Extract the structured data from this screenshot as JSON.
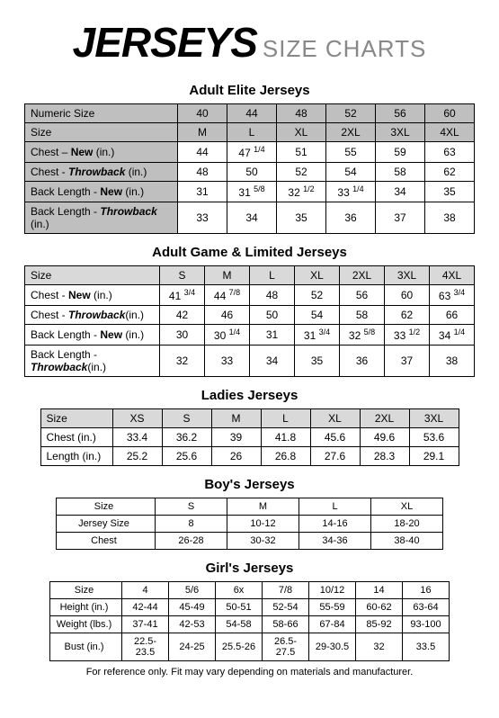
{
  "header": {
    "brand": "JERSEYS",
    "sub": "SIZE CHARTS"
  },
  "tables": {
    "adult_elite": {
      "title": "Adult Elite Jerseys",
      "rows": [
        {
          "label": "Numeric Size",
          "shade": true,
          "vals": [
            "40",
            "44",
            "48",
            "52",
            "56",
            "60"
          ]
        },
        {
          "label": "Size",
          "shade": true,
          "vals": [
            "M",
            "L",
            "XL",
            "2XL",
            "3XL",
            "4XL"
          ]
        },
        {
          "label_html": "Chest – <span class='bold-word'>New</span> (in.)",
          "shade_label": true,
          "vals": [
            "44",
            "47 <sup>1/4</sup>",
            "51",
            "55",
            "59",
            "63"
          ]
        },
        {
          "label_html": "Chest - <span class='italic-word'>Throwback</span> (in.)",
          "shade_label": true,
          "vals": [
            "48",
            "50",
            "52",
            "54",
            "58",
            "62"
          ]
        },
        {
          "label_html": "Back Length - <span class='bold-word'>New</span> (in.)",
          "shade_label": true,
          "vals": [
            "31",
            "31 <sup>5/8</sup>",
            "32 <sup>1/2</sup>",
            "33 <sup>1/4</sup>",
            "34",
            "35"
          ]
        },
        {
          "label_html": "Back Length - <span class='italic-word'>Throwback</span> (in.)",
          "shade_label": true,
          "vals": [
            "33",
            "34",
            "35",
            "36",
            "37",
            "38"
          ]
        }
      ]
    },
    "adult_game": {
      "title": "Adult Game & Limited Jerseys",
      "rows": [
        {
          "label": "Size",
          "shade": true,
          "vals": [
            "S",
            "M",
            "L",
            "XL",
            "2XL",
            "3XL",
            "4XL"
          ]
        },
        {
          "label_html": "Chest - <span class='bold-word'>New</span> (in.)",
          "vals": [
            "41 <sup>3/4</sup>",
            "44 <sup>7/8</sup>",
            "48",
            "52",
            "56",
            "60",
            "63 <sup>3/4</sup>"
          ]
        },
        {
          "label_html": "Chest - <span class='italic-word'>Throwback</span>(in.)",
          "vals": [
            "42",
            "46",
            "50",
            "54",
            "58",
            "62",
            "66"
          ]
        },
        {
          "label_html": "Back Length - <span class='bold-word'>New</span> (in.)",
          "vals": [
            "30",
            "30 <sup>1/4</sup>",
            "31",
            "31 <sup>3/4</sup>",
            "32 <sup>5/8</sup>",
            "33 <sup>1/2</sup>",
            "34 <sup>1/4</sup>"
          ]
        },
        {
          "label_html": "Back Length - <span class='italic-word'>Throwback</span>(in.)",
          "vals": [
            "32",
            "33",
            "34",
            "35",
            "36",
            "37",
            "38"
          ]
        }
      ]
    },
    "ladies": {
      "title": "Ladies Jerseys",
      "rows": [
        {
          "label": "Size",
          "shade": true,
          "shade_label": true,
          "vals": [
            "XS",
            "S",
            "M",
            "L",
            "XL",
            "2XL",
            "3XL"
          ]
        },
        {
          "label": "Chest (in.)",
          "vals": [
            "33.4",
            "36.2",
            "39",
            "41.8",
            "45.6",
            "49.6",
            "53.6"
          ]
        },
        {
          "label": "Length (in.)",
          "vals": [
            "25.2",
            "25.6",
            "26",
            "26.8",
            "27.6",
            "28.3",
            "29.1"
          ]
        }
      ]
    },
    "boys": {
      "title": "Boy's Jerseys",
      "rows": [
        {
          "label": "Size",
          "vals": [
            "S",
            "M",
            "L",
            "XL"
          ]
        },
        {
          "label": "Jersey Size",
          "vals": [
            "8",
            "10-12",
            "14-16",
            "18-20"
          ]
        },
        {
          "label": "Chest",
          "vals": [
            "26-28",
            "30-32",
            "34-36",
            "38-40"
          ]
        }
      ]
    },
    "girls": {
      "title": "Girl's Jerseys",
      "rows": [
        {
          "label": "Size",
          "vals": [
            "4",
            "5/6",
            "6x",
            "7/8",
            "10/12",
            "14",
            "16"
          ]
        },
        {
          "label": "Height (in.)",
          "vals": [
            "42-44",
            "45-49",
            "50-51",
            "52-54",
            "55-59",
            "60-62",
            "63-64"
          ]
        },
        {
          "label": "Weight (lbs.)",
          "vals": [
            "37-41",
            "42-53",
            "54-58",
            "58-66",
            "67-84",
            "85-92",
            "93-100"
          ]
        },
        {
          "label": "Bust (in.)",
          "vals": [
            "22.5-23.5",
            "24-25",
            "25.5-26",
            "26.5-27.5",
            "29-30.5",
            "32",
            "33.5"
          ]
        }
      ]
    }
  },
  "footer": "For reference only.  Fit may vary depending on materials and manufacturer."
}
